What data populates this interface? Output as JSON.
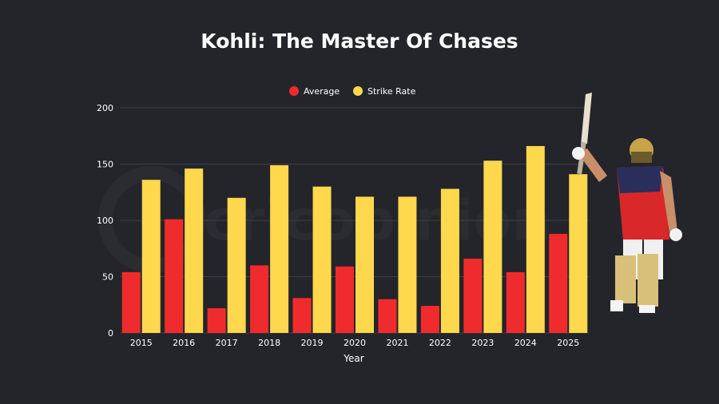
{
  "colors": {
    "background": "#23252b",
    "average": "#f02b2d",
    "strike_rate": "#ffd84d",
    "grid": "#3c3f46",
    "text": "#ffffff"
  },
  "chart_data": {
    "type": "bar",
    "title": "Kohli: The Master Of Chases",
    "xlabel": "Year",
    "ylabel": "",
    "categories": [
      "2015",
      "2016",
      "2017",
      "2018",
      "2019",
      "2020",
      "2021",
      "2022",
      "2023",
      "2024",
      "2025"
    ],
    "series": [
      {
        "name": "Average",
        "color": "#f02b2d",
        "values": [
          54,
          101,
          22,
          60,
          31,
          59,
          30,
          24,
          66,
          54,
          88
        ]
      },
      {
        "name": "Strike Rate",
        "color": "#ffd84d",
        "values": [
          136,
          146,
          120,
          149,
          130,
          121,
          121,
          128,
          153,
          166,
          141
        ]
      }
    ],
    "ylim": [
      0,
      200
    ],
    "yticks": [
      0,
      50,
      100,
      150,
      200
    ],
    "grid": true,
    "legend_position": "top-center"
  },
  "decor": {
    "watermark_text": "cricopinion",
    "player_image": "cricketer-celebrating-with-raised-bat"
  }
}
